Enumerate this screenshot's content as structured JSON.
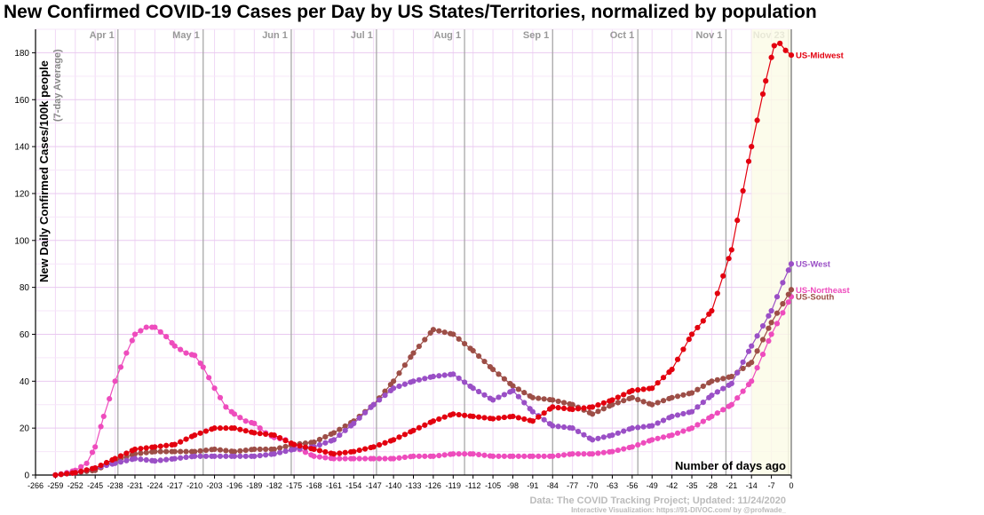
{
  "chart_data": {
    "type": "line",
    "title": "New Confirmed COVID-19 Cases per Day by US States/Territories, normalized by population",
    "ylabel": "New Daily Confirmed Cases/100k people",
    "ylabel_sub": "(7-day Average)",
    "xlabel": "Number of days ago",
    "xlim": [
      -266,
      0
    ],
    "ylim": [
      0,
      190
    ],
    "x_ticks": [
      -266,
      -259,
      -252,
      -245,
      -238,
      -231,
      -224,
      -217,
      -210,
      -203,
      -196,
      -189,
      -182,
      -175,
      -168,
      -161,
      -154,
      -147,
      -140,
      -133,
      -126,
      -119,
      -112,
      -105,
      -98,
      -91,
      -84,
      -77,
      -70,
      -63,
      -56,
      -49,
      -42,
      -35,
      -28,
      -21,
      -14,
      -7,
      0
    ],
    "y_ticks": [
      0,
      20,
      40,
      60,
      80,
      100,
      120,
      140,
      160,
      180
    ],
    "grid": true,
    "month_markers": [
      {
        "label": "Apr 1",
        "x": -237
      },
      {
        "label": "May 1",
        "x": -207
      },
      {
        "label": "Jun 1",
        "x": -176
      },
      {
        "label": "Jul 1",
        "x": -146
      },
      {
        "label": "Aug 1",
        "x": -115
      },
      {
        "label": "Sep 1",
        "x": -84
      },
      {
        "label": "Oct 1",
        "x": -54
      },
      {
        "label": "Nov 1",
        "x": -23
      },
      {
        "label": "Nov 23",
        "x": -1
      }
    ],
    "series": [
      {
        "name": "US-Midwest",
        "color": "#e3000f",
        "points": [
          [
            -259,
            0
          ],
          [
            -252,
            1
          ],
          [
            -245,
            3
          ],
          [
            -238,
            7
          ],
          [
            -231,
            11
          ],
          [
            -224,
            12
          ],
          [
            -217,
            13
          ],
          [
            -210,
            17
          ],
          [
            -203,
            20
          ],
          [
            -196,
            20
          ],
          [
            -189,
            18
          ],
          [
            -182,
            17
          ],
          [
            -175,
            13
          ],
          [
            -168,
            11
          ],
          [
            -161,
            9
          ],
          [
            -154,
            10
          ],
          [
            -147,
            12
          ],
          [
            -140,
            15
          ],
          [
            -133,
            19
          ],
          [
            -126,
            23
          ],
          [
            -119,
            26
          ],
          [
            -112,
            25
          ],
          [
            -105,
            24
          ],
          [
            -98,
            25
          ],
          [
            -91,
            23
          ],
          [
            -84,
            29
          ],
          [
            -77,
            28
          ],
          [
            -70,
            29
          ],
          [
            -63,
            32
          ],
          [
            -56,
            36
          ],
          [
            -49,
            37
          ],
          [
            -42,
            45
          ],
          [
            -35,
            60
          ],
          [
            -28,
            70
          ],
          [
            -21,
            96
          ],
          [
            -14,
            140
          ],
          [
            -9,
            168
          ],
          [
            -6,
            183
          ],
          [
            -4,
            184
          ],
          [
            -2,
            181
          ],
          [
            0,
            179
          ]
        ]
      },
      {
        "name": "US-West",
        "color": "#9a4fc6",
        "points": [
          [
            -259,
            0
          ],
          [
            -252,
            1
          ],
          [
            -245,
            3
          ],
          [
            -238,
            5
          ],
          [
            -231,
            7
          ],
          [
            -224,
            6
          ],
          [
            -217,
            7
          ],
          [
            -210,
            8
          ],
          [
            -203,
            8
          ],
          [
            -196,
            8
          ],
          [
            -189,
            8
          ],
          [
            -182,
            9
          ],
          [
            -175,
            11
          ],
          [
            -168,
            12
          ],
          [
            -161,
            15
          ],
          [
            -154,
            22
          ],
          [
            -147,
            30
          ],
          [
            -140,
            37
          ],
          [
            -133,
            40
          ],
          [
            -126,
            42
          ],
          [
            -119,
            43
          ],
          [
            -112,
            37
          ],
          [
            -105,
            32
          ],
          [
            -98,
            36
          ],
          [
            -91,
            27
          ],
          [
            -84,
            21
          ],
          [
            -77,
            20
          ],
          [
            -70,
            15
          ],
          [
            -63,
            17
          ],
          [
            -56,
            20
          ],
          [
            -49,
            21
          ],
          [
            -42,
            25
          ],
          [
            -35,
            27
          ],
          [
            -28,
            34
          ],
          [
            -21,
            39
          ],
          [
            -14,
            55
          ],
          [
            -7,
            70
          ],
          [
            -3,
            82
          ],
          [
            0,
            90
          ]
        ]
      },
      {
        "name": "US-Northeast",
        "color": "#ee4cbd",
        "points": [
          [
            -259,
            0
          ],
          [
            -255,
            1
          ],
          [
            -252,
            2
          ],
          [
            -248,
            5
          ],
          [
            -245,
            12
          ],
          [
            -242,
            25
          ],
          [
            -238,
            40
          ],
          [
            -234,
            52
          ],
          [
            -231,
            60
          ],
          [
            -227,
            63
          ],
          [
            -224,
            63
          ],
          [
            -220,
            59
          ],
          [
            -217,
            55
          ],
          [
            -213,
            52
          ],
          [
            -210,
            51
          ],
          [
            -207,
            46
          ],
          [
            -203,
            37
          ],
          [
            -199,
            29
          ],
          [
            -196,
            26
          ],
          [
            -192,
            23
          ],
          [
            -189,
            22
          ],
          [
            -185,
            18
          ],
          [
            -182,
            16
          ],
          [
            -178,
            15
          ],
          [
            -175,
            12
          ],
          [
            -168,
            8
          ],
          [
            -161,
            7
          ],
          [
            -154,
            7
          ],
          [
            -147,
            7
          ],
          [
            -140,
            7
          ],
          [
            -133,
            8
          ],
          [
            -126,
            8
          ],
          [
            -119,
            9
          ],
          [
            -112,
            9
          ],
          [
            -105,
            8
          ],
          [
            -98,
            8
          ],
          [
            -91,
            8
          ],
          [
            -84,
            8
          ],
          [
            -77,
            9
          ],
          [
            -70,
            9
          ],
          [
            -63,
            10
          ],
          [
            -56,
            12
          ],
          [
            -49,
            15
          ],
          [
            -42,
            17
          ],
          [
            -35,
            20
          ],
          [
            -28,
            25
          ],
          [
            -21,
            30
          ],
          [
            -14,
            40
          ],
          [
            -7,
            60
          ],
          [
            0,
            76
          ]
        ]
      },
      {
        "name": "US-South",
        "color": "#9d4e47",
        "points": [
          [
            -259,
            0
          ],
          [
            -252,
            1
          ],
          [
            -245,
            2
          ],
          [
            -238,
            6
          ],
          [
            -231,
            9
          ],
          [
            -224,
            10
          ],
          [
            -217,
            10
          ],
          [
            -210,
            10
          ],
          [
            -203,
            11
          ],
          [
            -196,
            10
          ],
          [
            -189,
            11
          ],
          [
            -182,
            11
          ],
          [
            -175,
            13
          ],
          [
            -168,
            14
          ],
          [
            -161,
            18
          ],
          [
            -154,
            23
          ],
          [
            -147,
            30
          ],
          [
            -140,
            40
          ],
          [
            -133,
            52
          ],
          [
            -126,
            62
          ],
          [
            -119,
            60
          ],
          [
            -112,
            53
          ],
          [
            -105,
            45
          ],
          [
            -98,
            38
          ],
          [
            -91,
            33
          ],
          [
            -84,
            32
          ],
          [
            -77,
            30
          ],
          [
            -70,
            26
          ],
          [
            -63,
            30
          ],
          [
            -56,
            33
          ],
          [
            -49,
            30
          ],
          [
            -42,
            33
          ],
          [
            -35,
            35
          ],
          [
            -28,
            40
          ],
          [
            -21,
            42
          ],
          [
            -14,
            48
          ],
          [
            -7,
            65
          ],
          [
            0,
            79
          ]
        ]
      }
    ],
    "end_labels": [
      {
        "series": "US-Midwest",
        "text": "US-Midwest",
        "y": 179
      },
      {
        "series": "US-West",
        "text": "US-West",
        "y": 90
      },
      {
        "series": "US-Northeast",
        "text": "US-Northeast",
        "y": 79
      },
      {
        "series": "US-South",
        "text": "US-South",
        "y": 76
      }
    ],
    "source": "Data: The COVID Tracking Project; Updated: 11/24/2020",
    "credit": "Interactive Visualization: https://91-DIVOC.com/ by @profwade_"
  }
}
